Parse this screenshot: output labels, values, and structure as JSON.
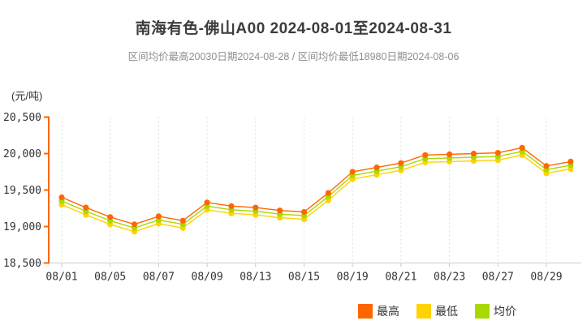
{
  "header": {
    "title": "南海有色-佛山A00 2024-08-01至2024-08-31",
    "subtitle": "区间均价最高20030日期2024-08-28 / 区间均价最低18980日期2024-08-06"
  },
  "chart_data": {
    "type": "line",
    "title": "南海有色-佛山A00 2024-08-01至2024-08-31",
    "unit_label": "(元/吨)",
    "x": [
      "08/01",
      "08/02",
      "08/05",
      "08/06",
      "08/07",
      "08/08",
      "08/09",
      "08/12",
      "08/13",
      "08/14",
      "08/15",
      "08/16",
      "08/19",
      "08/20",
      "08/21",
      "08/22",
      "08/23",
      "08/26",
      "08/27",
      "08/28",
      "08/29",
      "08/30"
    ],
    "x_tick_labels": [
      "08/01",
      "08/05",
      "08/07",
      "08/09",
      "08/13",
      "08/15",
      "08/19",
      "08/21",
      "08/23",
      "08/27",
      "08/29"
    ],
    "x_tick_every": 2,
    "series": [
      {
        "name": "最高",
        "color": "#FF6600",
        "values": [
          19400,
          19260,
          19130,
          19030,
          19140,
          19080,
          19330,
          19280,
          19260,
          19220,
          19200,
          19460,
          19750,
          19810,
          19870,
          19980,
          19990,
          20000,
          20010,
          20080,
          19830,
          19890
        ]
      },
      {
        "name": "最低",
        "color": "#FFD200",
        "values": [
          19300,
          19160,
          19030,
          18930,
          19040,
          18980,
          19230,
          19180,
          19160,
          19120,
          19100,
          19360,
          19650,
          19710,
          19770,
          19880,
          19890,
          19900,
          19910,
          19980,
          19730,
          19790
        ]
      },
      {
        "name": "均价",
        "color": "#A8D900",
        "values": [
          19350,
          19210,
          19080,
          18980,
          19090,
          19030,
          19280,
          19230,
          19210,
          19170,
          19150,
          19410,
          19700,
          19760,
          19820,
          19930,
          19940,
          19950,
          19960,
          20030,
          19780,
          19840
        ]
      }
    ],
    "y_axis": {
      "min": 18500,
      "max": 20500,
      "tick_step": 500,
      "tick_labels": [
        "18,500",
        "19,000",
        "19,500",
        "20,000",
        "20,500"
      ],
      "axis_color": "#FF6600"
    },
    "grid": {
      "vertical_dashed": true,
      "color": "#DEDEDE",
      "x_axis_color": "#CCCCCC"
    },
    "legend_position": "bottom-right",
    "annotations": {
      "avg_max": {
        "value": 20030,
        "date": "2024-08-28"
      },
      "avg_min": {
        "value": 18980,
        "date": "2024-08-06"
      }
    }
  }
}
